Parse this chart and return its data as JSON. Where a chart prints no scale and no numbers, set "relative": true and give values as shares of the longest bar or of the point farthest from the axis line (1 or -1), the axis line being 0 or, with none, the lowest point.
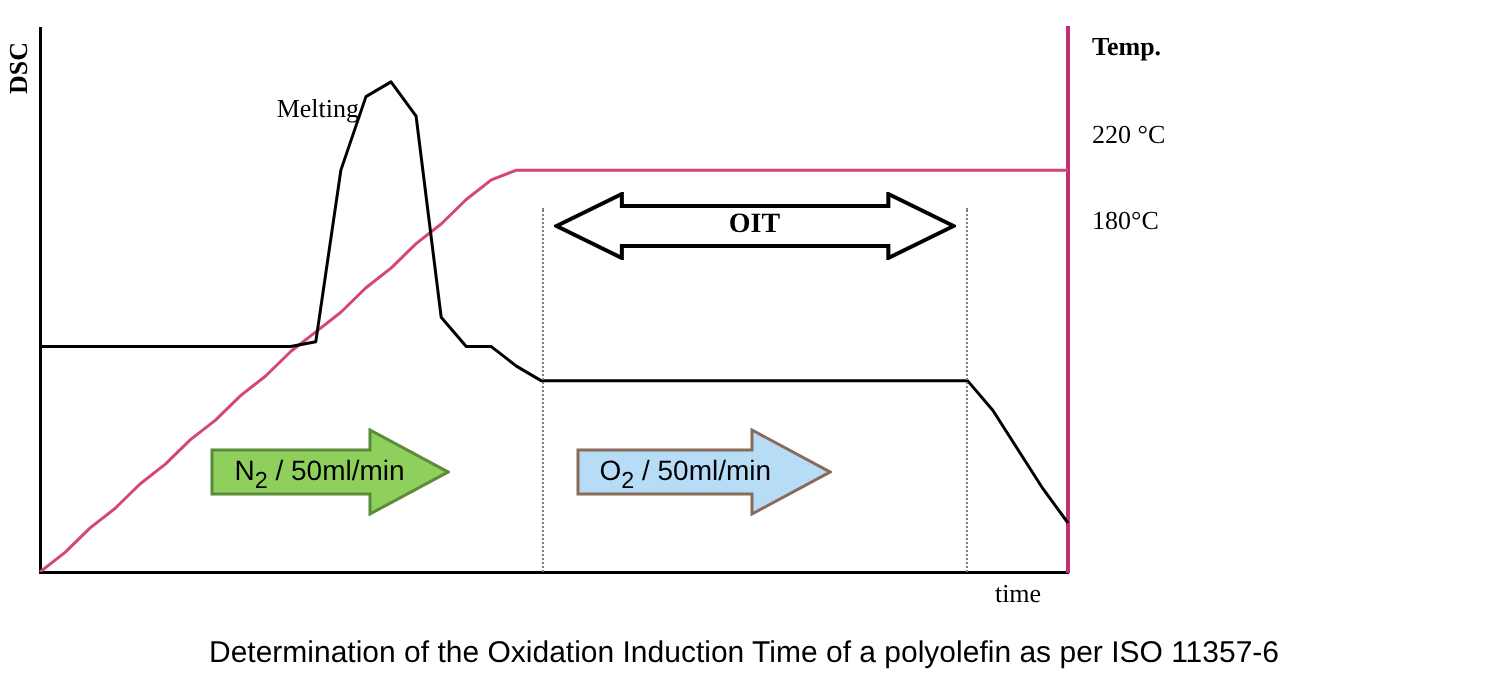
{
  "chart_data": {
    "type": "line",
    "relative": true,
    "xlabel": "time",
    "ylabel": "DSC",
    "y2label": "Temp.",
    "categories": [
      null,
      null,
      null,
      null,
      null,
      null,
      null,
      null,
      null,
      null,
      null,
      null,
      null,
      null,
      null,
      null,
      null,
      null,
      null,
      null,
      null,
      null,
      null,
      null,
      null,
      null,
      null,
      null,
      null,
      null,
      null,
      null,
      null,
      null,
      null,
      null,
      null,
      null,
      null,
      null,
      null,
      null
    ],
    "series": [
      {
        "color": "#000000",
        "values": [
          0.46,
          0.46,
          0.46,
          0.46,
          0.46,
          0.46,
          0.46,
          0.46,
          0.46,
          0.46,
          0.46,
          0.47,
          0.82,
          0.97,
          1.0,
          0.93,
          0.52,
          0.46,
          0.46,
          0.42,
          0.39,
          0.39,
          0.39,
          0.39,
          0.39,
          0.39,
          0.39,
          0.39,
          0.39,
          0.39,
          0.39,
          0.39,
          0.39,
          0.39,
          0.39,
          0.39,
          0.39,
          0.39,
          0.33,
          0.25,
          0.17,
          0.1
        ]
      },
      {
        "color": "#d4457a",
        "values": [
          0,
          0.04,
          0.09,
          0.13,
          0.18,
          0.22,
          0.27,
          0.31,
          0.36,
          0.4,
          0.45,
          0.49,
          0.53,
          0.58,
          0.62,
          0.67,
          0.71,
          0.76,
          0.8,
          0.82,
          0.82,
          0.82,
          0.82,
          0.82,
          0.82,
          0.82,
          0.82,
          0.82,
          0.82,
          0.82,
          0.82,
          0.82,
          0.82,
          0.82,
          0.82,
          0.82,
          0.82,
          0.82,
          0.82,
          0.82,
          0.82,
          0.82
        ]
      }
    ],
    "annotations": [
      "Melting",
      "OIT",
      "N$_{2}$ / 50ml/min",
      "O$_{2}$ / 50ml/min",
      "Determination of the Oxidation Induction Time of a polyolefin as per ISO 11357-6",
      "220 °C",
      "180°C"
    ],
    "grid": false,
    "legend": false,
    "marker": "none",
    "line_style": "solid"
  }
}
